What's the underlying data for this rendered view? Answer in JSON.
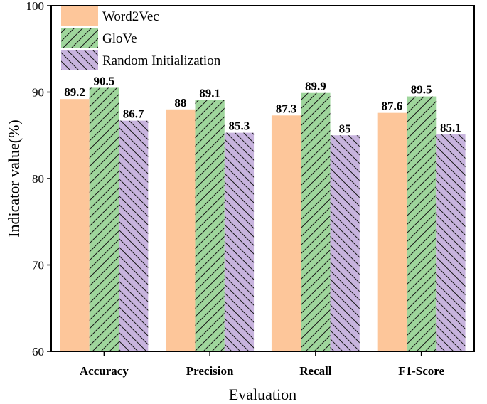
{
  "chart_data": {
    "type": "bar",
    "categories": [
      "Accuracy",
      "Precision",
      "Recall",
      "F1-Score"
    ],
    "series": [
      {
        "name": "Word2Vec",
        "values": [
          89.2,
          88,
          87.3,
          87.6
        ],
        "color": "#FDC69A",
        "pattern": "solid"
      },
      {
        "name": "GloVe",
        "values": [
          90.5,
          89.1,
          89.9,
          89.5
        ],
        "color": "#9FD69C",
        "pattern": "hatch-forward"
      },
      {
        "name": "Random Initialization",
        "values": [
          86.7,
          85.3,
          85,
          85.1
        ],
        "color": "#C8B4DE",
        "pattern": "hatch-backward"
      }
    ],
    "xlabel": "Evaluation",
    "ylabel": "Indicator value(%)",
    "ylim": [
      60,
      100
    ],
    "yticks": [
      60,
      70,
      80,
      90,
      100
    ],
    "legend_position": "top-left",
    "grid": false
  }
}
